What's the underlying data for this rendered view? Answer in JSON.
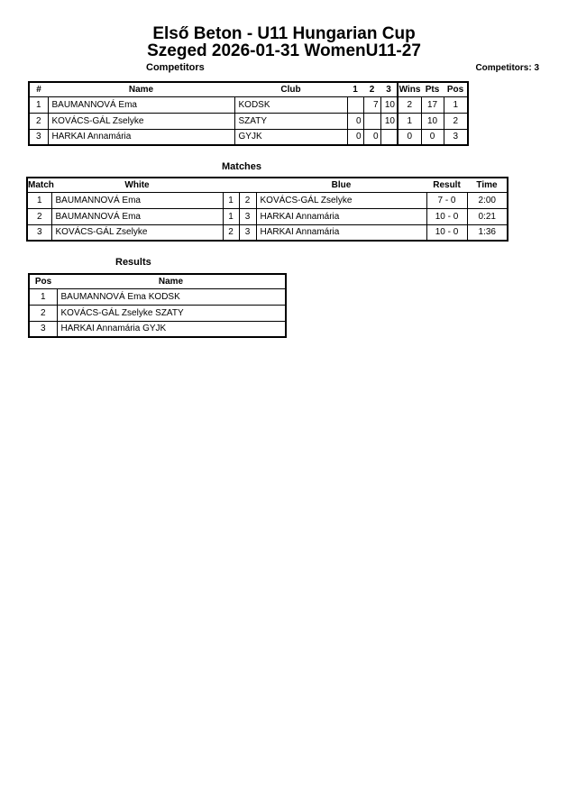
{
  "title_line1": "Első Beton - U11 Hungarian Cup",
  "title_line2": "Szeged 2026-01-31 WomenU11-27",
  "competitors": {
    "heading": "Competitors",
    "count_label": "Competitors: 3",
    "headers": [
      "#",
      "Name",
      "Club",
      "1",
      "2",
      "3",
      "Wins",
      "Pts",
      "Pos"
    ],
    "rows": [
      [
        "1",
        "BAUMANNOVÁ Ema",
        "KODSK",
        "",
        "7",
        "10",
        "2",
        "17",
        "1"
      ],
      [
        "2",
        "KOVÁCS-GÁL Zselyke",
        "SZATY",
        "0",
        "",
        "10",
        "1",
        "10",
        "2"
      ],
      [
        "3",
        "HARKAI Annamária",
        "GYJK",
        "0",
        "0",
        "",
        "0",
        "0",
        "3"
      ]
    ]
  },
  "matches": {
    "heading": "Matches",
    "headers": [
      "Match",
      "White",
      "",
      "",
      "Blue",
      "Result",
      "Time"
    ],
    "rows": [
      [
        "1",
        "BAUMANNOVÁ Ema",
        "1",
        "2",
        "KOVÁCS-GÁL Zselyke",
        "7 - 0",
        "2:00"
      ],
      [
        "2",
        "BAUMANNOVÁ Ema",
        "1",
        "3",
        "HARKAI Annamária",
        "10 - 0",
        "0:21"
      ],
      [
        "3",
        "KOVÁCS-GÁL Zselyke",
        "2",
        "3",
        "HARKAI Annamária",
        "10 - 0",
        "1:36"
      ]
    ]
  },
  "results": {
    "heading": "Results",
    "headers": [
      "Pos",
      "Name"
    ],
    "rows": [
      [
        "1",
        "BAUMANNOVÁ Ema KODSK"
      ],
      [
        "2",
        "KOVÁCS-GÁL Zselyke SZATY"
      ],
      [
        "3",
        "HARKAI Annamária GYJK"
      ]
    ]
  }
}
